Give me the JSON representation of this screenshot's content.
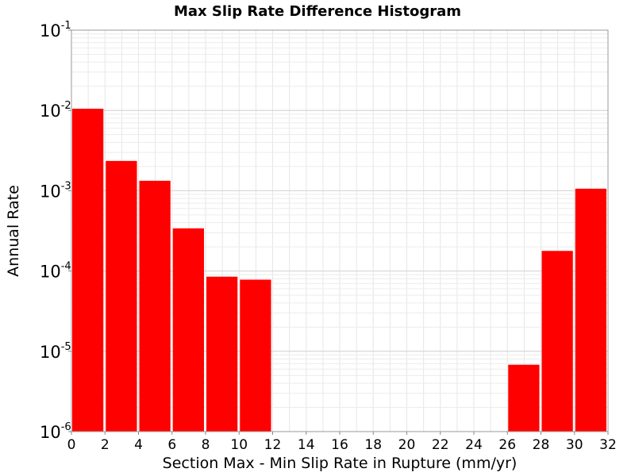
{
  "chart_data": {
    "type": "bar",
    "title": "Max Slip Rate Difference Histogram",
    "xlabel": "Section Max - Min Slip Rate in Rupture (mm/yr)",
    "ylabel": "Annual Rate",
    "xlim": [
      0,
      32
    ],
    "ylim": [
      1e-06,
      0.1
    ],
    "yscale": "log",
    "x_ticks": [
      "0",
      "2",
      "4",
      "6",
      "8",
      "10",
      "12",
      "14",
      "16",
      "18",
      "20",
      "22",
      "24",
      "26",
      "28",
      "30",
      "32"
    ],
    "y_ticks": [
      {
        "base": "10",
        "exp": "-6",
        "value": 1e-06
      },
      {
        "base": "10",
        "exp": "-5",
        "value": 1e-05
      },
      {
        "base": "10",
        "exp": "-4",
        "value": 0.0001
      },
      {
        "base": "10",
        "exp": "-3",
        "value": 0.001
      },
      {
        "base": "10",
        "exp": "-2",
        "value": 0.01
      },
      {
        "base": "10",
        "exp": "-1",
        "value": 0.1
      }
    ],
    "grid": true,
    "bar_color": "#ff0000",
    "bins": [
      {
        "x0": 0,
        "x1": 2,
        "value": 0.0105
      },
      {
        "x0": 2,
        "x1": 4,
        "value": 0.00235
      },
      {
        "x0": 4,
        "x1": 6,
        "value": 0.00133
      },
      {
        "x0": 6,
        "x1": 8,
        "value": 0.00034
      },
      {
        "x0": 8,
        "x1": 10,
        "value": 8.5e-05
      },
      {
        "x0": 10,
        "x1": 12,
        "value": 7.8e-05
      },
      {
        "x0": 26,
        "x1": 28,
        "value": 6.8e-06
      },
      {
        "x0": 28,
        "x1": 30,
        "value": 0.000178
      },
      {
        "x0": 30,
        "x1": 32,
        "value": 0.00106
      }
    ]
  }
}
